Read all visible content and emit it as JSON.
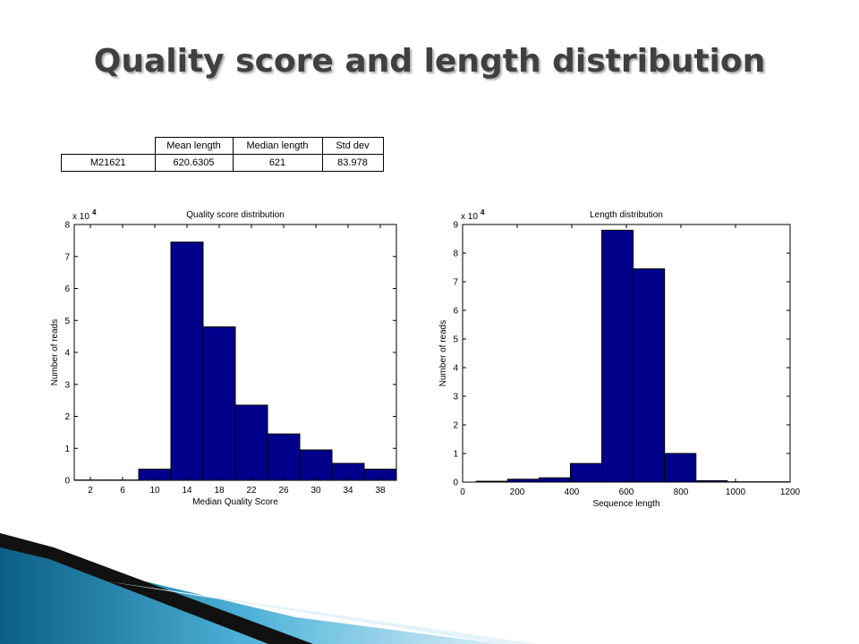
{
  "title": "Quality score and length distribution",
  "table": {
    "header": [
      "Mean length",
      "Median length",
      "Std dev"
    ],
    "rows": [
      [
        "M21621",
        "620.6305",
        "621",
        "83.978"
      ]
    ]
  },
  "chart_data": [
    {
      "type": "histogram",
      "title": "Quality score distribution",
      "x_label": "Median Quality Score",
      "y_label": "Number of reads",
      "y_multiplier": {
        "base": "x 10",
        "exponent": "4"
      },
      "bins": [
        0,
        4,
        8,
        12,
        16,
        20,
        24,
        28,
        32,
        36,
        40
      ],
      "values": [
        0.01,
        0.01,
        0.35,
        7.45,
        4.8,
        2.35,
        1.45,
        0.95,
        0.53,
        0.35
      ],
      "color": "#00008b",
      "xlim": [
        0,
        40
      ],
      "xticks": [
        2,
        6,
        10,
        14,
        18,
        22,
        26,
        30,
        34,
        38
      ],
      "ylim": [
        0,
        8
      ],
      "yticks": [
        0,
        1,
        2,
        3,
        4,
        5,
        6,
        7,
        8
      ]
    },
    {
      "type": "histogram",
      "title": "Length distribution",
      "x_label": "Sequence length",
      "y_label": "Number of reads",
      "y_multiplier": {
        "base": "x 10",
        "exponent": "4"
      },
      "bins": [
        50,
        165,
        280,
        395,
        510,
        625,
        740,
        855,
        970,
        1085,
        1200
      ],
      "values": [
        0.03,
        0.1,
        0.15,
        0.65,
        8.8,
        7.45,
        1.0,
        0.05,
        0.01,
        0.01
      ],
      "color": "#00008b",
      "xlim": [
        0,
        1200
      ],
      "xticks": [
        0,
        200,
        400,
        600,
        800,
        1000,
        1200
      ],
      "ylim": [
        0,
        9
      ],
      "yticks": [
        0,
        1,
        2,
        3,
        4,
        5,
        6,
        7,
        8,
        9
      ]
    }
  ]
}
